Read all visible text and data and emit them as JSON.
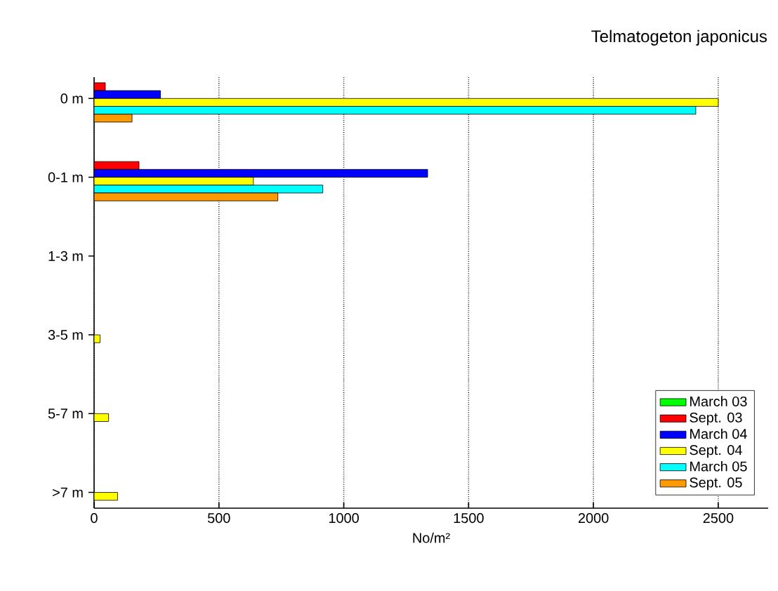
{
  "chart_data": {
    "type": "bar",
    "orientation": "horizontal",
    "title": "Telmatogeton japonicus",
    "xlabel": "No/m²",
    "categories": [
      "0 m",
      "0-1 m",
      "1-3 m",
      "3-5 m",
      "5-7 m",
      ">7 m"
    ],
    "series": [
      {
        "name": "March 03",
        "color": "#00ff00",
        "values": [
          null,
          null,
          null,
          null,
          null,
          null
        ]
      },
      {
        "name": "Sept.  03",
        "color": "#ff0000",
        "values": [
          45,
          180,
          null,
          null,
          null,
          null
        ]
      },
      {
        "name": "March 04",
        "color": "#0000ff",
        "values": [
          266,
          1336,
          null,
          null,
          null,
          null
        ]
      },
      {
        "name": "Sept.  04",
        "color": "#ffff00",
        "values": [
          2500,
          638,
          null,
          24,
          58,
          94
        ]
      },
      {
        "name": "March 05",
        "color": "#00ffff",
        "values": [
          2410,
          916,
          null,
          null,
          null,
          null
        ]
      },
      {
        "name": "Sept.  05",
        "color": "#ff9900",
        "values": [
          152,
          736,
          null,
          null,
          null,
          null
        ]
      }
    ],
    "xlim": [
      0,
      2700
    ],
    "xticks": [
      0,
      500,
      1000,
      1500,
      2000,
      2500
    ],
    "grid": "x",
    "legend": "bottom right"
  }
}
